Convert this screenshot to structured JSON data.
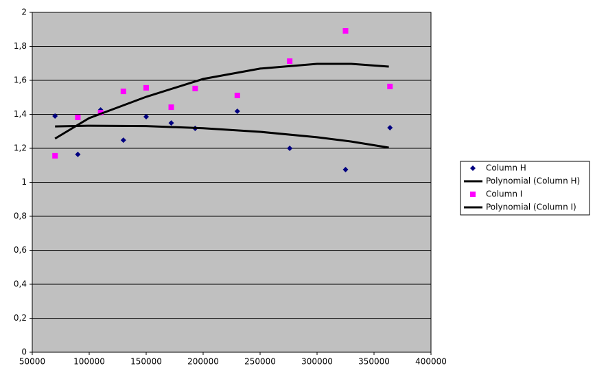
{
  "chart_data": {
    "type": "scatter",
    "xlim": [
      50000,
      400000
    ],
    "xticks": [
      50000,
      100000,
      150000,
      200000,
      250000,
      300000,
      350000,
      400000
    ],
    "ylim": [
      0,
      2
    ],
    "yticks": [
      0,
      {
        "value": 0.2,
        "label": "0,2"
      },
      {
        "value": 0.4,
        "label": "0,4"
      },
      {
        "value": 0.6,
        "label": "0,6"
      },
      {
        "value": 0.8,
        "label": "0,8"
      },
      1,
      {
        "value": 1.2,
        "label": "1,2"
      },
      {
        "value": 1.4,
        "label": "1,4"
      },
      {
        "value": 1.6,
        "label": "1,6"
      },
      {
        "value": 1.8,
        "label": "1,8"
      },
      2
    ],
    "grid": true,
    "background": "#c0c0c0",
    "legend": "right",
    "series": [
      {
        "name": "Column H",
        "kind": "points",
        "marker": "diamond",
        "color": "#000080",
        "x": [
          70000,
          90000,
          110000,
          130000,
          150000,
          172000,
          193000,
          230000,
          276000,
          325000,
          364000
        ],
        "values": [
          1.39,
          1.164,
          1.426,
          1.248,
          1.386,
          1.349,
          1.317,
          1.418,
          1.2,
          1.075,
          1.321
        ]
      },
      {
        "name": "Polynomial (Column H)",
        "kind": "line",
        "color": "#000000",
        "x": [
          70000,
          100000,
          150000,
          200000,
          250000,
          300000,
          330000,
          363000
        ],
        "values": [
          1.329,
          1.333,
          1.331,
          1.318,
          1.297,
          1.265,
          1.24,
          1.204
        ]
      },
      {
        "name": "Column I",
        "kind": "points",
        "marker": "square",
        "color": "#ff00ff",
        "x": [
          70000,
          90000,
          110000,
          130000,
          150000,
          172000,
          193000,
          230000,
          276000,
          325000,
          364000
        ],
        "values": [
          1.156,
          1.382,
          1.41,
          1.535,
          1.556,
          1.442,
          1.552,
          1.511,
          1.713,
          1.891,
          1.564
        ]
      },
      {
        "name": "Polynomial (Column I)",
        "kind": "line",
        "color": "#000000",
        "x": [
          70000,
          100000,
          150000,
          200000,
          250000,
          300000,
          330000,
          363000
        ],
        "values": [
          1.257,
          1.378,
          1.503,
          1.608,
          1.669,
          1.697,
          1.697,
          1.681
        ]
      }
    ]
  }
}
